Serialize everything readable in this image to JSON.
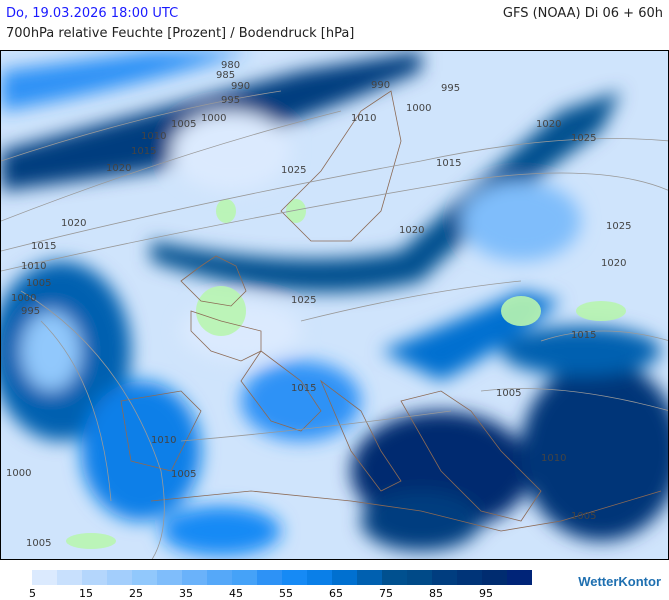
{
  "header": {
    "datetime": "Do, 19.03.2026 18:00 UTC",
    "model": "GFS (NOAA) Di 06 + 60h",
    "parameter": "700hPa relative Feuchte [Prozent] / Bodendruck [hPa]"
  },
  "legend": {
    "colors": [
      "#dbeafe",
      "#c8e0fd",
      "#b4d6fc",
      "#a3cefc",
      "#91c8fc",
      "#7fbdfb",
      "#6ab2fa",
      "#55a8f9",
      "#45a2f8",
      "#2d92f6",
      "#168af5",
      "#0a7fe8",
      "#0070d0",
      "#0060b0",
      "#00508f",
      "#004a88",
      "#003d7f",
      "#003478",
      "#002c70",
      "#002478"
    ],
    "labels": [
      "5",
      "15",
      "25",
      "35",
      "45",
      "55",
      "65",
      "75",
      "85",
      "95"
    ]
  },
  "isobar_labels": [
    "980",
    "985",
    "990",
    "995",
    "1005",
    "1000",
    "1010",
    "1015",
    "1020",
    "990",
    "995",
    "1000",
    "1010",
    "1020",
    "1025",
    "1025",
    "1015",
    "1020",
    "1020",
    "1025",
    "1015",
    "1010",
    "1005",
    "1000",
    "995",
    "1020",
    "1015",
    "1025",
    "1015",
    "1005",
    "1010",
    "1010",
    "1005",
    "1000",
    "1005",
    "1005"
  ],
  "brand": "WetterKontor"
}
